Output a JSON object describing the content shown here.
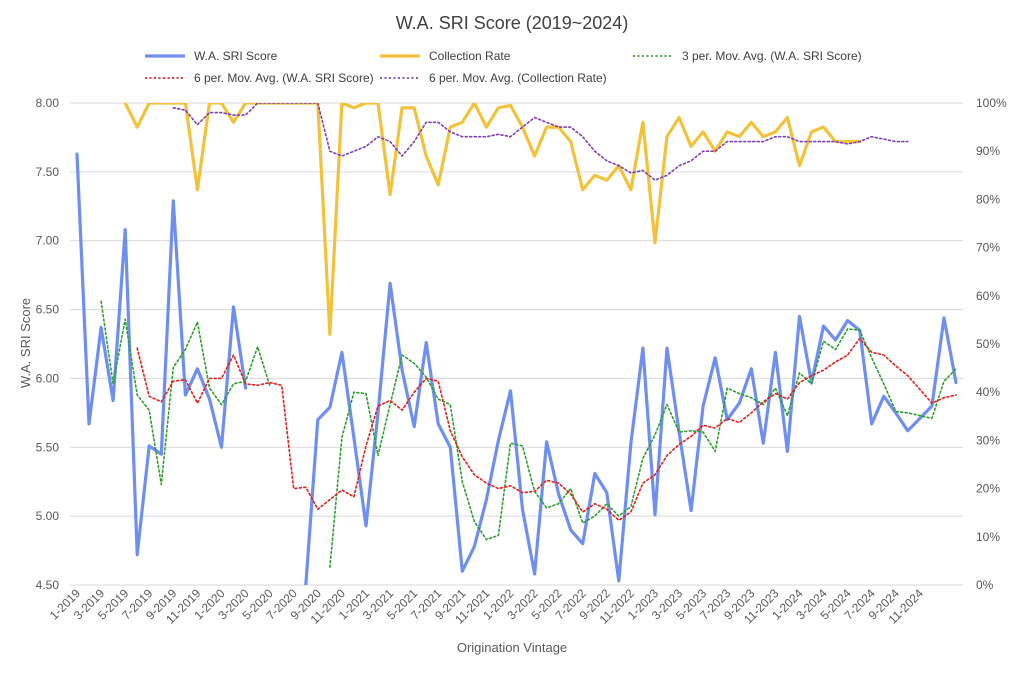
{
  "colors": {
    "sri": "#6F8FF0",
    "collection": "#F2C23A",
    "ma3_sri": "#2CA02C",
    "ma6_sri": "#E0201B",
    "ma6_collection": "#7E3FB5"
  },
  "chart_data": {
    "type": "line",
    "title": "W.A. SRI Score (2019~2024)",
    "xlabel": "Origination Vintage",
    "ylabel": "W.A. SRI Score",
    "ylim": [
      4.5,
      8.0
    ],
    "y2lim": [
      0,
      100
    ],
    "y_ticks": [
      "4.50",
      "5.00",
      "5.50",
      "6.00",
      "6.50",
      "7.00",
      "7.50",
      "8.00"
    ],
    "y2_ticks": [
      "0%",
      "10%",
      "20%",
      "30%",
      "40%",
      "50%",
      "60%",
      "70%",
      "80%",
      "90%",
      "100%"
    ],
    "x_tick_labels": [
      "1-2019",
      "3-2019",
      "5-2019",
      "7-2019",
      "9-2019",
      "11-2019",
      "1-2020",
      "3-2020",
      "5-2020",
      "7-2020",
      "9-2020",
      "11-2020",
      "1-2021",
      "3-2021",
      "5-2021",
      "7-2021",
      "9-2021",
      "11-2021",
      "1-2022",
      "3-2022",
      "5-2022",
      "7-2022",
      "9-2022",
      "11-2022",
      "1-2023",
      "3-2023",
      "5-2023",
      "7-2023",
      "9-2023",
      "11-2023",
      "1-2024",
      "3-2024",
      "5-2024",
      "7-2024",
      "9-2024",
      "11-2024"
    ],
    "grid": true,
    "legend": "top",
    "series": [
      {
        "name": "W.A. SRI Score",
        "axis": "left",
        "values": [
          7.63,
          5.67,
          6.37,
          5.84,
          7.08,
          4.72,
          5.51,
          5.45,
          7.29,
          5.88,
          6.07,
          5.85,
          5.5,
          6.52,
          5.93,
          null,
          null,
          null,
          null,
          4.5,
          5.7,
          5.79,
          6.19,
          5.57,
          4.93,
          5.75,
          6.69,
          6.06,
          5.65,
          6.26,
          5.67,
          5.5,
          4.6,
          4.78,
          5.12,
          5.55,
          5.91,
          5.05,
          4.58,
          5.54,
          5.16,
          4.9,
          4.8,
          5.31,
          5.17,
          4.53,
          5.53,
          6.22,
          5.01,
          6.22,
          5.61,
          5.04,
          5.8,
          6.15,
          5.7,
          5.82,
          6.07,
          5.53,
          6.19,
          5.47,
          6.45,
          5.97,
          6.38,
          6.28,
          6.42,
          6.35,
          5.67,
          5.87,
          5.75,
          5.62,
          5.71,
          5.8,
          6.44,
          5.97
        ]
      },
      {
        "name": "Collection Rate",
        "axis": "right",
        "values": [
          null,
          null,
          null,
          null,
          100,
          95,
          100,
          100,
          100,
          100,
          82,
          100,
          100,
          96,
          100,
          100,
          100,
          100,
          100,
          100,
          100,
          52,
          100,
          99,
          100,
          100,
          81,
          99,
          99,
          89,
          83,
          95,
          96,
          100,
          95,
          99,
          99.5,
          95,
          89,
          95,
          95,
          92,
          82,
          85,
          84,
          87,
          82,
          96,
          71,
          93,
          97,
          91,
          94,
          90,
          94,
          93,
          96,
          93,
          94,
          97,
          87,
          94,
          95,
          92,
          92,
          92,
          null,
          null,
          null,
          null,
          null,
          null,
          null,
          null
        ]
      },
      {
        "name": "3 per. Mov. Avg. (W.A. SRI Score)",
        "axis": "left",
        "values": [
          null,
          null,
          6.56,
          5.96,
          6.43,
          5.88,
          5.77,
          5.23,
          6.08,
          6.21,
          6.41,
          5.93,
          5.81,
          5.96,
          5.98,
          6.23,
          5.95,
          null,
          null,
          null,
          null,
          4.63,
          5.57,
          5.9,
          5.89,
          5.44,
          5.81,
          6.17,
          6.11,
          6.01,
          5.85,
          5.81,
          5.25,
          4.96,
          4.83,
          4.86,
          5.53,
          5.51,
          5.18,
          5.06,
          5.09,
          5.2,
          4.95,
          5.0,
          5.09,
          5.0,
          5.07,
          5.42,
          5.59,
          5.81,
          5.61,
          5.62,
          5.61,
          5.47,
          5.93,
          5.89,
          5.86,
          5.81,
          5.93,
          5.73,
          6.04,
          5.96,
          6.27,
          6.21,
          6.36,
          6.35,
          6.15,
          5.96,
          5.76,
          5.75,
          5.73,
          5.71,
          5.98,
          6.07
        ]
      },
      {
        "name": "6 per. Mov. Avg. (W.A. SRI Score)",
        "axis": "left",
        "values": [
          null,
          null,
          null,
          null,
          null,
          6.22,
          5.87,
          5.83,
          5.98,
          5.99,
          5.82,
          6.0,
          6.0,
          6.17,
          5.96,
          5.95,
          5.97,
          5.95,
          5.2,
          5.21,
          5.05,
          5.12,
          5.19,
          5.14,
          5.51,
          5.8,
          5.84,
          5.77,
          5.9,
          6.0,
          5.98,
          5.62,
          5.43,
          5.3,
          5.24,
          5.2,
          5.22,
          5.17,
          5.18,
          5.26,
          5.24,
          5.16,
          5.03,
          5.09,
          5.05,
          4.97,
          5.03,
          5.24,
          5.3,
          5.44,
          5.52,
          5.58,
          5.66,
          5.64,
          5.71,
          5.68,
          5.75,
          5.83,
          5.89,
          5.85,
          5.97,
          6.02,
          6.06,
          6.12,
          6.17,
          6.29,
          6.19,
          6.17,
          6.09,
          6.02,
          5.92,
          5.82,
          5.86,
          5.88
        ]
      },
      {
        "name": "6 per. Mov. Avg. (Collection Rate)",
        "axis": "right",
        "values": [
          null,
          null,
          null,
          null,
          null,
          null,
          null,
          null,
          99,
          98.5,
          95.5,
          98,
          98,
          97.5,
          97.5,
          100,
          100,
          100,
          100,
          100,
          100,
          90,
          89,
          90,
          91,
          93,
          92,
          89,
          92,
          96,
          96,
          94,
          93,
          93,
          93,
          93.5,
          93,
          95,
          97,
          96,
          95,
          95,
          93,
          90,
          88,
          87,
          85.5,
          86,
          84,
          85,
          87,
          88,
          90,
          90,
          92,
          92,
          92,
          92,
          93,
          93,
          92,
          92,
          92,
          92,
          91.5,
          92,
          93,
          92.5,
          92,
          92,
          null,
          null,
          null,
          null
        ]
      }
    ]
  }
}
